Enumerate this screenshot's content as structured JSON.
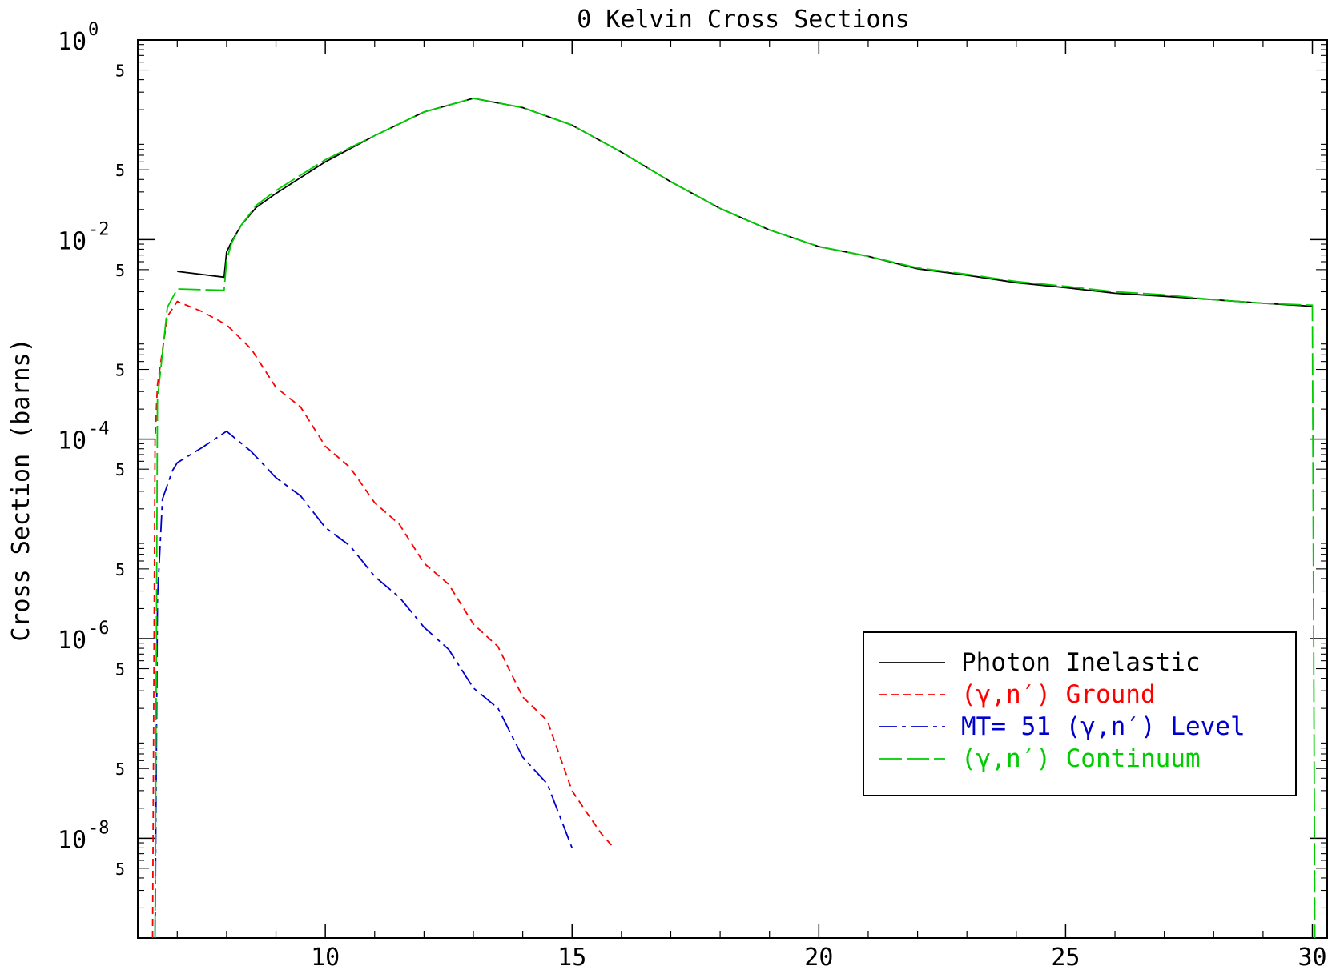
{
  "chart_data": {
    "type": "line",
    "title": "0 Kelvin Cross Sections",
    "ylabel": "Cross Section (barns)",
    "xlabel": "",
    "xlim": [
      6.2,
      30.3
    ],
    "ylim": [
      1e-09,
      1
    ],
    "y_scale": "log",
    "x_ticks": [
      10,
      15,
      20,
      25,
      30
    ],
    "y_ticks": [
      {
        "base": "10",
        "exp": "0",
        "value": 1
      },
      {
        "base": "10",
        "exp": "-2",
        "value": 0.01
      },
      {
        "base": "10",
        "exp": "-4",
        "value": 0.0001
      },
      {
        "base": "10",
        "exp": "-6",
        "value": 1e-06
      },
      {
        "base": "10",
        "exp": "-8",
        "value": 1e-08
      }
    ],
    "y_minor_label": "5",
    "grid": false,
    "legend_position": "lower-right",
    "series": [
      {
        "name": "Photon Inelastic",
        "color": "#000000",
        "dash": "",
        "points": [
          [
            7.0,
            0.0048
          ],
          [
            7.95,
            0.0042
          ],
          [
            8.0,
            0.0075
          ],
          [
            8.1,
            0.0095
          ],
          [
            8.3,
            0.014
          ],
          [
            8.6,
            0.021
          ],
          [
            9.0,
            0.029
          ],
          [
            10.0,
            0.06
          ],
          [
            11.0,
            0.11
          ],
          [
            12.0,
            0.19
          ],
          [
            13.0,
            0.26
          ],
          [
            14.0,
            0.21
          ],
          [
            15.0,
            0.14
          ],
          [
            16.0,
            0.075
          ],
          [
            17.0,
            0.038
          ],
          [
            18.0,
            0.0205
          ],
          [
            19.0,
            0.0125
          ],
          [
            20.0,
            0.0085
          ],
          [
            21.0,
            0.0068
          ],
          [
            22.0,
            0.0051
          ],
          [
            23.0,
            0.0044
          ],
          [
            24.0,
            0.0037
          ],
          [
            25.0,
            0.0033
          ],
          [
            26.0,
            0.0029
          ],
          [
            27.0,
            0.0027
          ],
          [
            28.0,
            0.0025
          ],
          [
            29.0,
            0.0023
          ],
          [
            30.0,
            0.00215
          ]
        ]
      },
      {
        "name": "(γ,n′) Ground",
        "color": "#ff0000",
        "dash": "9,6",
        "points": [
          [
            6.5,
            1e-09
          ],
          [
            6.55,
            0.0001
          ],
          [
            6.6,
            0.00035
          ],
          [
            6.8,
            0.0017
          ],
          [
            7.0,
            0.0024
          ],
          [
            7.5,
            0.0019
          ],
          [
            8.0,
            0.0014
          ],
          [
            8.5,
            0.0008
          ],
          [
            9.0,
            0.00033
          ],
          [
            9.5,
            0.00021
          ],
          [
            10.0,
            8.5e-05
          ],
          [
            10.5,
            5.2e-05
          ],
          [
            11.0,
            2.3e-05
          ],
          [
            11.5,
            1.4e-05
          ],
          [
            12.0,
            5.7e-06
          ],
          [
            12.5,
            3.5e-06
          ],
          [
            13.0,
            1.4e-06
          ],
          [
            13.5,
            8.3e-07
          ],
          [
            14.0,
            2.6e-07
          ],
          [
            14.5,
            1.5e-07
          ],
          [
            15.0,
            3e-08
          ],
          [
            15.3,
            1.8e-08
          ],
          [
            15.6,
            1.1e-08
          ],
          [
            15.8,
            8.5e-09
          ]
        ]
      },
      {
        "name": "MT= 51 (γ,n′) Level",
        "color": "#0000cc",
        "dash": "22,6,5,6",
        "points": [
          [
            6.55,
            1e-09
          ],
          [
            6.6,
            2.5e-06
          ],
          [
            6.7,
            2.5e-05
          ],
          [
            6.9,
            4.8e-05
          ],
          [
            7.0,
            5.8e-05
          ],
          [
            7.5,
            8.2e-05
          ],
          [
            8.0,
            0.00012
          ],
          [
            8.5,
            7.5e-05
          ],
          [
            9.0,
            4.1e-05
          ],
          [
            9.5,
            2.7e-05
          ],
          [
            10.0,
            1.3e-05
          ],
          [
            10.5,
            8.5e-06
          ],
          [
            11.0,
            4.2e-06
          ],
          [
            11.5,
            2.6e-06
          ],
          [
            12.0,
            1.3e-06
          ],
          [
            12.5,
            7.8e-07
          ],
          [
            13.0,
            3.2e-07
          ],
          [
            13.5,
            2e-07
          ],
          [
            14.0,
            6.5e-08
          ],
          [
            14.5,
            3.5e-08
          ],
          [
            15.0,
            8e-09
          ]
        ]
      },
      {
        "name": "(γ,n′) Continuum",
        "color": "#00cc00",
        "dash": "28,6",
        "points": [
          [
            6.55,
            1e-09
          ],
          [
            6.6,
            0.00025
          ],
          [
            6.8,
            0.0021
          ],
          [
            7.0,
            0.0032
          ],
          [
            7.95,
            0.0031
          ],
          [
            8.0,
            0.0062
          ],
          [
            8.1,
            0.0092
          ],
          [
            8.3,
            0.014
          ],
          [
            8.6,
            0.022
          ],
          [
            9.0,
            0.031
          ],
          [
            10.0,
            0.063
          ],
          [
            11.0,
            0.11
          ],
          [
            12.0,
            0.19
          ],
          [
            13.0,
            0.26
          ],
          [
            14.0,
            0.21
          ],
          [
            15.0,
            0.14
          ],
          [
            16.0,
            0.075
          ],
          [
            17.0,
            0.038
          ],
          [
            18.0,
            0.0205
          ],
          [
            19.0,
            0.0125
          ],
          [
            20.0,
            0.0085
          ],
          [
            21.0,
            0.0068
          ],
          [
            22.0,
            0.0052
          ],
          [
            23.0,
            0.0045
          ],
          [
            24.0,
            0.0038
          ],
          [
            25.0,
            0.0034
          ],
          [
            26.0,
            0.003
          ],
          [
            27.0,
            0.0028
          ],
          [
            28.0,
            0.0025
          ],
          [
            29.0,
            0.0023
          ],
          [
            30.0,
            0.0022
          ],
          [
            30.05,
            1e-09
          ]
        ]
      }
    ]
  }
}
